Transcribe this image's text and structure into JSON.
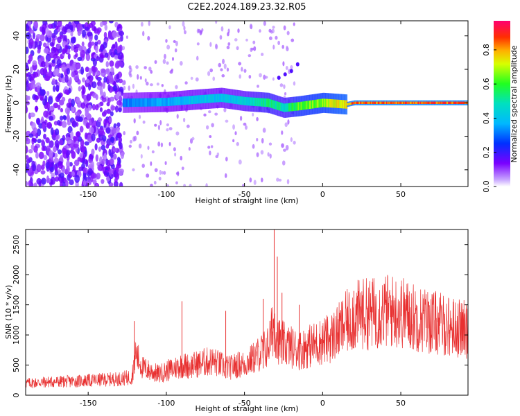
{
  "title": "C2E2.2024.189.23.32.R05",
  "colors": {
    "snr_line": "#e83030",
    "background": "#ffffff"
  },
  "chart_data": [
    {
      "type": "heatmap",
      "name": "spectrogram",
      "xlabel": "Height of straight line (km)",
      "ylabel": "Frequency (Hz)",
      "xlim": [
        -190,
        93
      ],
      "ylim": [
        -50,
        49
      ],
      "xticks": [
        -150,
        -100,
        -50,
        0,
        50
      ],
      "yticks": [
        -40,
        -20,
        0,
        20,
        40
      ],
      "colormap": "rainbow (purple to red)",
      "colorbar": {
        "label": "Normalized spectral amplitude",
        "range": [
          0,
          0.97
        ],
        "ticks": [
          0.0,
          0.2,
          0.4,
          0.6,
          0.8
        ]
      },
      "features": [
        {
          "region": "broadband noise",
          "x_range": [
            -190,
            -128
          ],
          "freq_range": [
            -50,
            49
          ],
          "amplitude": 0.15
        },
        {
          "region": "signal track",
          "x": [
            -128,
            -100,
            -80,
            -65,
            -50,
            -35,
            -25,
            -15,
            0,
            15,
            20,
            93
          ],
          "freq": [
            0,
            0.5,
            2,
            3,
            1,
            0,
            -3,
            -2,
            0,
            -1,
            0,
            0
          ],
          "amplitude": [
            0.35,
            0.4,
            0.45,
            0.45,
            0.5,
            0.6,
            0.55,
            0.7,
            0.75,
            0.85,
            0.95,
            0.95
          ]
        }
      ]
    },
    {
      "type": "line",
      "name": "snr",
      "xlabel": "Height of straight line (km)",
      "ylabel": "SNR (10 * v/v)",
      "xlim": [
        -190,
        93
      ],
      "ylim": [
        0,
        2750
      ],
      "xticks": [
        -150,
        -100,
        -50,
        0,
        50
      ],
      "yticks": [
        0,
        500,
        1000,
        1500,
        2000,
        2500
      ],
      "series": [
        {
          "color": "#e83030",
          "x": [
            -190,
            -175,
            -160,
            -145,
            -130,
            -122,
            -120,
            -115,
            -110,
            -105,
            -100,
            -95,
            -90,
            -85,
            -80,
            -75,
            -70,
            -65,
            -60,
            -55,
            -50,
            -45,
            -40,
            -35,
            -31,
            -28,
            -25,
            -20,
            -15,
            -10,
            -5,
            0,
            5,
            10,
            15,
            20,
            25,
            30,
            35,
            40,
            50,
            60,
            70,
            80,
            93
          ],
          "y": [
            200,
            220,
            230,
            250,
            270,
            300,
            700,
            450,
            400,
            350,
            400,
            450,
            500,
            480,
            520,
            550,
            560,
            500,
            450,
            500,
            520,
            600,
            700,
            800,
            1200,
            900,
            850,
            800,
            750,
            800,
            850,
            900,
            950,
            1050,
            1200,
            1300,
            1350,
            1350,
            1380,
            1400,
            1380,
            1280,
            1220,
            1150,
            1080
          ]
        }
      ],
      "spikes": [
        {
          "x": -120.5,
          "y": 1230
        },
        {
          "x": -90,
          "y": 1560
        },
        {
          "x": -62,
          "y": 1400
        },
        {
          "x": -38,
          "y": 1600
        },
        {
          "x": -31,
          "y": 2750
        },
        {
          "x": -29,
          "y": 2300
        },
        {
          "x": -26,
          "y": 1700
        },
        {
          "x": -15,
          "y": 1500
        },
        {
          "x": 20,
          "y": 1730
        }
      ]
    }
  ]
}
